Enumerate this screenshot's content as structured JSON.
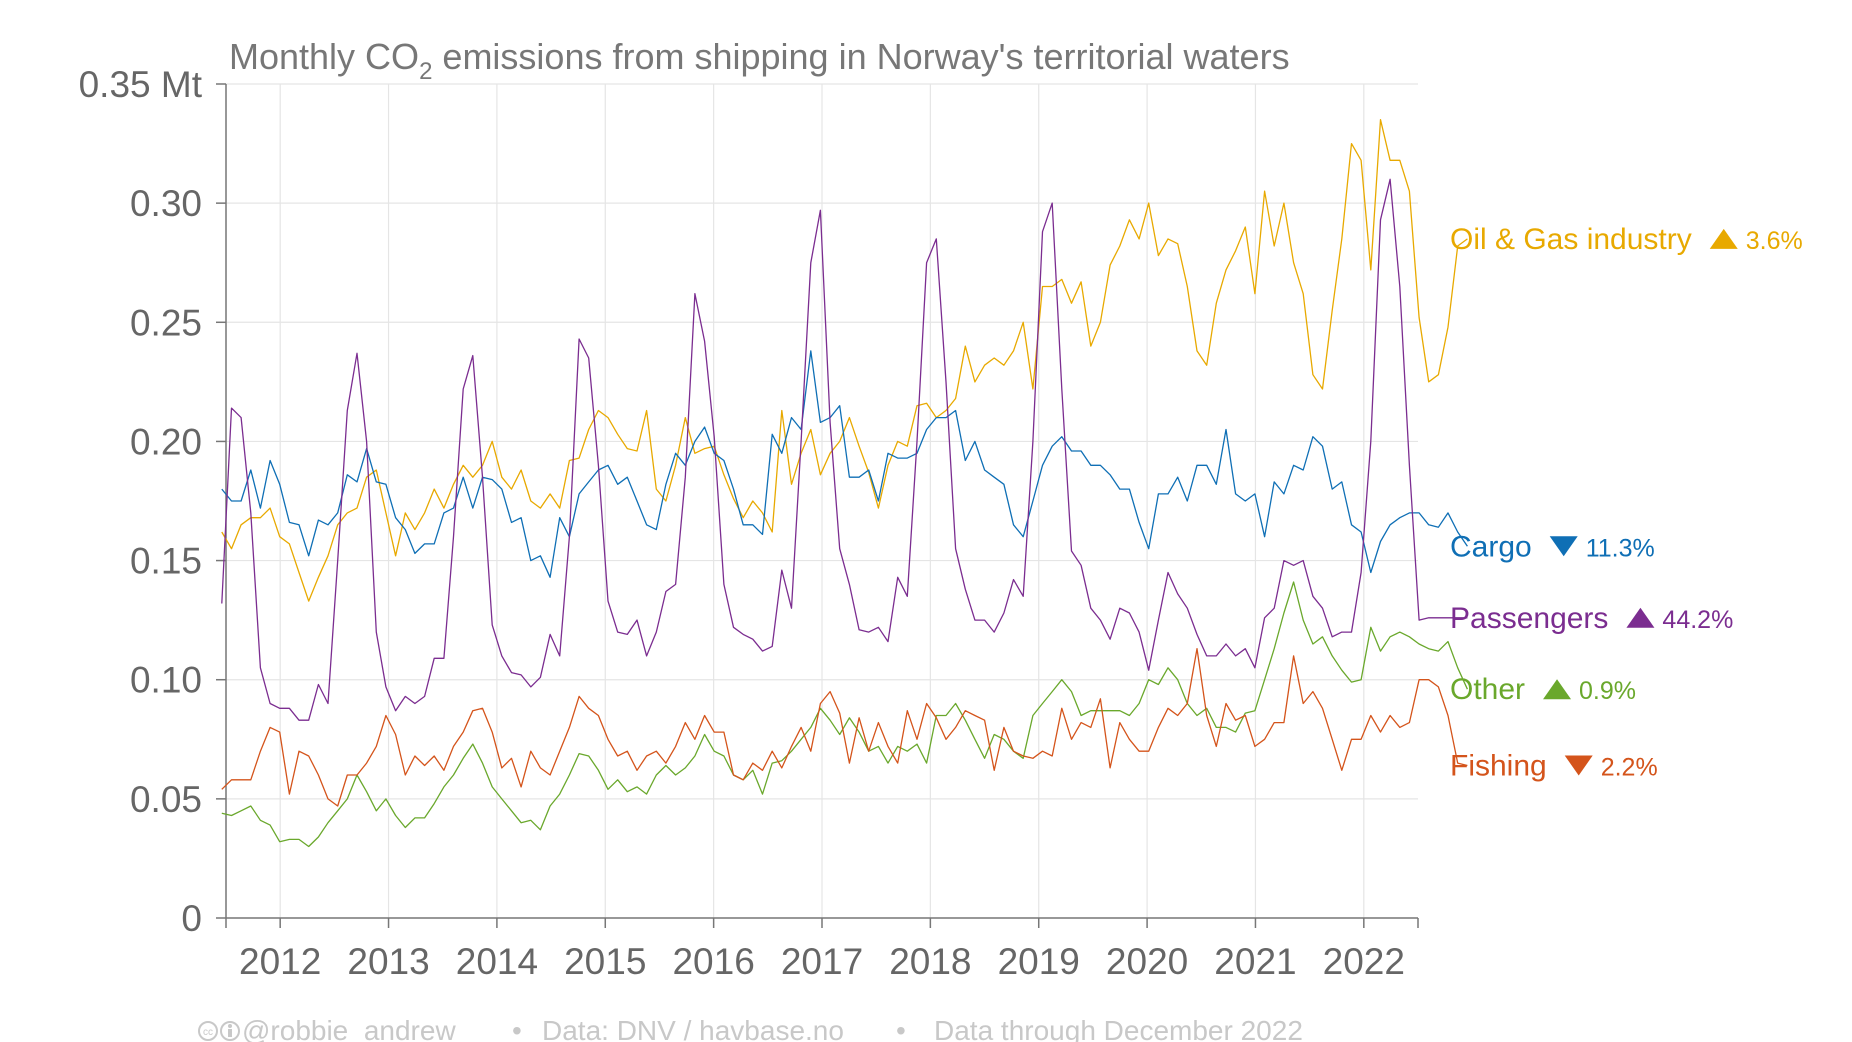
{
  "chart_data": {
    "type": "line",
    "title_main": "Monthly CO",
    "title_sub": "2",
    "title_rest": " emissions from shipping in Norway's territorial waters",
    "ylim": [
      0,
      0.35
    ],
    "y_ticks": [
      {
        "value": 0,
        "label": "0"
      },
      {
        "value": 0.05,
        "label": "0.05"
      },
      {
        "value": 0.1,
        "label": "0.10"
      },
      {
        "value": 0.15,
        "label": "0.15"
      },
      {
        "value": 0.2,
        "label": "0.20"
      },
      {
        "value": 0.25,
        "label": "0.25"
      },
      {
        "value": 0.3,
        "label": "0.30"
      },
      {
        "value": 0.35,
        "label": "0.35 Mt"
      }
    ],
    "x_range": [
      2011.5,
      2022.5
    ],
    "x_ticks": [
      {
        "value": 2012,
        "label": "2012"
      },
      {
        "value": 2013,
        "label": "2013"
      },
      {
        "value": 2014,
        "label": "2014"
      },
      {
        "value": 2015,
        "label": "2015"
      },
      {
        "value": 2016,
        "label": "2016"
      },
      {
        "value": 2017,
        "label": "2017"
      },
      {
        "value": 2018,
        "label": "2018"
      },
      {
        "value": 2019,
        "label": "2019"
      },
      {
        "value": 2020,
        "label": "2020"
      },
      {
        "value": 2021,
        "label": "2021"
      },
      {
        "value": 2022,
        "label": "2022"
      }
    ],
    "x_start": "2011-06",
    "x_end": "2022-12",
    "grid": true,
    "legend_position": "right, at series ends",
    "series": [
      {
        "name": "Oil & Gas industry",
        "color": "#e8a900",
        "change_label": "3.6%",
        "direction": "up",
        "values": [
          0.162,
          0.155,
          0.165,
          0.168,
          0.168,
          0.172,
          0.16,
          0.157,
          0.145,
          0.133,
          0.143,
          0.152,
          0.165,
          0.17,
          0.172,
          0.185,
          0.188,
          0.17,
          0.152,
          0.17,
          0.163,
          0.17,
          0.18,
          0.172,
          0.182,
          0.19,
          0.185,
          0.19,
          0.2,
          0.185,
          0.18,
          0.188,
          0.175,
          0.172,
          0.178,
          0.172,
          0.192,
          0.193,
          0.205,
          0.213,
          0.21,
          0.203,
          0.197,
          0.196,
          0.213,
          0.18,
          0.175,
          0.19,
          0.21,
          0.195,
          0.197,
          0.198,
          0.186,
          0.176,
          0.168,
          0.175,
          0.17,
          0.162,
          0.213,
          0.182,
          0.195,
          0.205,
          0.186,
          0.195,
          0.2,
          0.21,
          0.198,
          0.187,
          0.172,
          0.19,
          0.2,
          0.198,
          0.215,
          0.216,
          0.21,
          0.213,
          0.218,
          0.24,
          0.225,
          0.232,
          0.235,
          0.232,
          0.238,
          0.25,
          0.222,
          0.265,
          0.265,
          0.268,
          0.258,
          0.267,
          0.24,
          0.25,
          0.274,
          0.282,
          0.293,
          0.285,
          0.3,
          0.278,
          0.285,
          0.283,
          0.265,
          0.238,
          0.232,
          0.258,
          0.272,
          0.28,
          0.29,
          0.262,
          0.305,
          0.282,
          0.3,
          0.275,
          0.262,
          0.228,
          0.222,
          0.255,
          0.285,
          0.325,
          0.318,
          0.272,
          0.335,
          0.318,
          0.318,
          0.305,
          0.252,
          0.225,
          0.228,
          0.248,
          0.282,
          0.285
        ]
      },
      {
        "name": "Cargo",
        "color": "#0f6fb5",
        "change_label": "11.3%",
        "direction": "down",
        "values": [
          0.18,
          0.175,
          0.175,
          0.188,
          0.172,
          0.192,
          0.182,
          0.166,
          0.165,
          0.152,
          0.167,
          0.165,
          0.17,
          0.186,
          0.183,
          0.197,
          0.183,
          0.182,
          0.168,
          0.163,
          0.153,
          0.157,
          0.157,
          0.17,
          0.172,
          0.185,
          0.172,
          0.185,
          0.184,
          0.18,
          0.166,
          0.168,
          0.15,
          0.152,
          0.143,
          0.168,
          0.16,
          0.178,
          0.183,
          0.188,
          0.19,
          0.182,
          0.185,
          0.175,
          0.165,
          0.163,
          0.182,
          0.195,
          0.19,
          0.2,
          0.206,
          0.195,
          0.192,
          0.18,
          0.165,
          0.165,
          0.161,
          0.203,
          0.195,
          0.21,
          0.205,
          0.238,
          0.208,
          0.21,
          0.215,
          0.185,
          0.185,
          0.188,
          0.175,
          0.195,
          0.193,
          0.193,
          0.195,
          0.205,
          0.21,
          0.21,
          0.213,
          0.192,
          0.2,
          0.188,
          0.185,
          0.182,
          0.165,
          0.16,
          0.175,
          0.19,
          0.198,
          0.202,
          0.196,
          0.196,
          0.19,
          0.19,
          0.186,
          0.18,
          0.18,
          0.166,
          0.155,
          0.178,
          0.178,
          0.185,
          0.175,
          0.19,
          0.19,
          0.182,
          0.205,
          0.178,
          0.175,
          0.178,
          0.16,
          0.183,
          0.178,
          0.19,
          0.188,
          0.202,
          0.198,
          0.18,
          0.183,
          0.165,
          0.162,
          0.145,
          0.158,
          0.165,
          0.168,
          0.17,
          0.17,
          0.165,
          0.164,
          0.17,
          0.162,
          0.156
        ]
      },
      {
        "name": "Passengers",
        "color": "#7b2d90",
        "change_label": "44.2%",
        "direction": "up",
        "values": [
          0.132,
          0.214,
          0.21,
          0.17,
          0.105,
          0.09,
          0.088,
          0.088,
          0.083,
          0.083,
          0.098,
          0.09,
          0.15,
          0.213,
          0.237,
          0.2,
          0.12,
          0.097,
          0.087,
          0.093,
          0.09,
          0.093,
          0.109,
          0.109,
          0.16,
          0.222,
          0.236,
          0.185,
          0.123,
          0.11,
          0.103,
          0.102,
          0.097,
          0.101,
          0.119,
          0.11,
          0.16,
          0.243,
          0.235,
          0.19,
          0.133,
          0.12,
          0.119,
          0.125,
          0.11,
          0.12,
          0.137,
          0.14,
          0.185,
          0.262,
          0.242,
          0.202,
          0.14,
          0.122,
          0.119,
          0.117,
          0.112,
          0.114,
          0.146,
          0.13,
          0.2,
          0.275,
          0.297,
          0.208,
          0.155,
          0.14,
          0.121,
          0.12,
          0.122,
          0.116,
          0.143,
          0.135,
          0.2,
          0.275,
          0.285,
          0.225,
          0.155,
          0.138,
          0.125,
          0.125,
          0.12,
          0.128,
          0.142,
          0.135,
          0.2,
          0.288,
          0.3,
          0.222,
          0.154,
          0.148,
          0.13,
          0.125,
          0.117,
          0.13,
          0.128,
          0.12,
          0.104,
          0.125,
          0.145,
          0.136,
          0.13,
          0.119,
          0.11,
          0.11,
          0.115,
          0.11,
          0.113,
          0.105,
          0.126,
          0.13,
          0.15,
          0.148,
          0.15,
          0.135,
          0.13,
          0.118,
          0.12,
          0.12,
          0.145,
          0.2,
          0.293,
          0.31,
          0.265,
          0.19,
          0.125,
          0.126,
          0.126,
          0.126,
          0.126,
          0.126
        ]
      },
      {
        "name": "Other",
        "color": "#6aa82c",
        "change_label": "0.9%",
        "direction": "up",
        "values": [
          0.044,
          0.043,
          0.045,
          0.047,
          0.041,
          0.039,
          0.032,
          0.033,
          0.033,
          0.03,
          0.034,
          0.04,
          0.045,
          0.05,
          0.06,
          0.053,
          0.045,
          0.05,
          0.043,
          0.038,
          0.042,
          0.042,
          0.048,
          0.055,
          0.06,
          0.067,
          0.073,
          0.065,
          0.055,
          0.05,
          0.045,
          0.04,
          0.041,
          0.037,
          0.047,
          0.052,
          0.06,
          0.069,
          0.068,
          0.062,
          0.054,
          0.058,
          0.053,
          0.055,
          0.052,
          0.06,
          0.064,
          0.06,
          0.063,
          0.068,
          0.077,
          0.07,
          0.068,
          0.06,
          0.058,
          0.062,
          0.052,
          0.065,
          0.066,
          0.07,
          0.075,
          0.08,
          0.088,
          0.083,
          0.077,
          0.084,
          0.078,
          0.07,
          0.072,
          0.065,
          0.072,
          0.07,
          0.073,
          0.065,
          0.085,
          0.085,
          0.09,
          0.083,
          0.075,
          0.067,
          0.077,
          0.075,
          0.07,
          0.067,
          0.085,
          0.09,
          0.095,
          0.1,
          0.095,
          0.085,
          0.087,
          0.087,
          0.087,
          0.087,
          0.085,
          0.09,
          0.1,
          0.098,
          0.105,
          0.1,
          0.09,
          0.085,
          0.088,
          0.08,
          0.08,
          0.078,
          0.086,
          0.087,
          0.1,
          0.113,
          0.128,
          0.141,
          0.125,
          0.115,
          0.118,
          0.11,
          0.104,
          0.099,
          0.1,
          0.122,
          0.112,
          0.118,
          0.12,
          0.118,
          0.115,
          0.113,
          0.112,
          0.116,
          0.105,
          0.096
        ]
      },
      {
        "name": "Fishing",
        "color": "#d4541b",
        "change_label": "2.2%",
        "direction": "down",
        "values": [
          0.054,
          0.058,
          0.058,
          0.058,
          0.07,
          0.08,
          0.078,
          0.052,
          0.07,
          0.068,
          0.06,
          0.05,
          0.047,
          0.06,
          0.06,
          0.065,
          0.072,
          0.085,
          0.077,
          0.06,
          0.068,
          0.064,
          0.068,
          0.062,
          0.072,
          0.078,
          0.087,
          0.088,
          0.078,
          0.063,
          0.067,
          0.055,
          0.07,
          0.063,
          0.06,
          0.07,
          0.08,
          0.093,
          0.088,
          0.085,
          0.075,
          0.068,
          0.07,
          0.062,
          0.068,
          0.07,
          0.065,
          0.072,
          0.082,
          0.075,
          0.085,
          0.078,
          0.078,
          0.06,
          0.058,
          0.065,
          0.062,
          0.07,
          0.063,
          0.072,
          0.08,
          0.07,
          0.09,
          0.095,
          0.086,
          0.065,
          0.084,
          0.07,
          0.082,
          0.072,
          0.065,
          0.087,
          0.075,
          0.09,
          0.084,
          0.075,
          0.08,
          0.087,
          0.085,
          0.083,
          0.062,
          0.08,
          0.07,
          0.068,
          0.067,
          0.07,
          0.068,
          0.088,
          0.075,
          0.082,
          0.08,
          0.092,
          0.063,
          0.082,
          0.075,
          0.07,
          0.07,
          0.08,
          0.088,
          0.085,
          0.09,
          0.113,
          0.085,
          0.072,
          0.09,
          0.083,
          0.085,
          0.072,
          0.075,
          0.082,
          0.082,
          0.11,
          0.09,
          0.095,
          0.088,
          0.075,
          0.062,
          0.075,
          0.075,
          0.085,
          0.078,
          0.085,
          0.08,
          0.082,
          0.1,
          0.1,
          0.097,
          0.085,
          0.065,
          0.064
        ]
      }
    ]
  },
  "footer": {
    "credit": "@robbie_andrew",
    "separator": "•",
    "source": "Data: DNV / havbase.no",
    "note": "Data through December 2022"
  }
}
